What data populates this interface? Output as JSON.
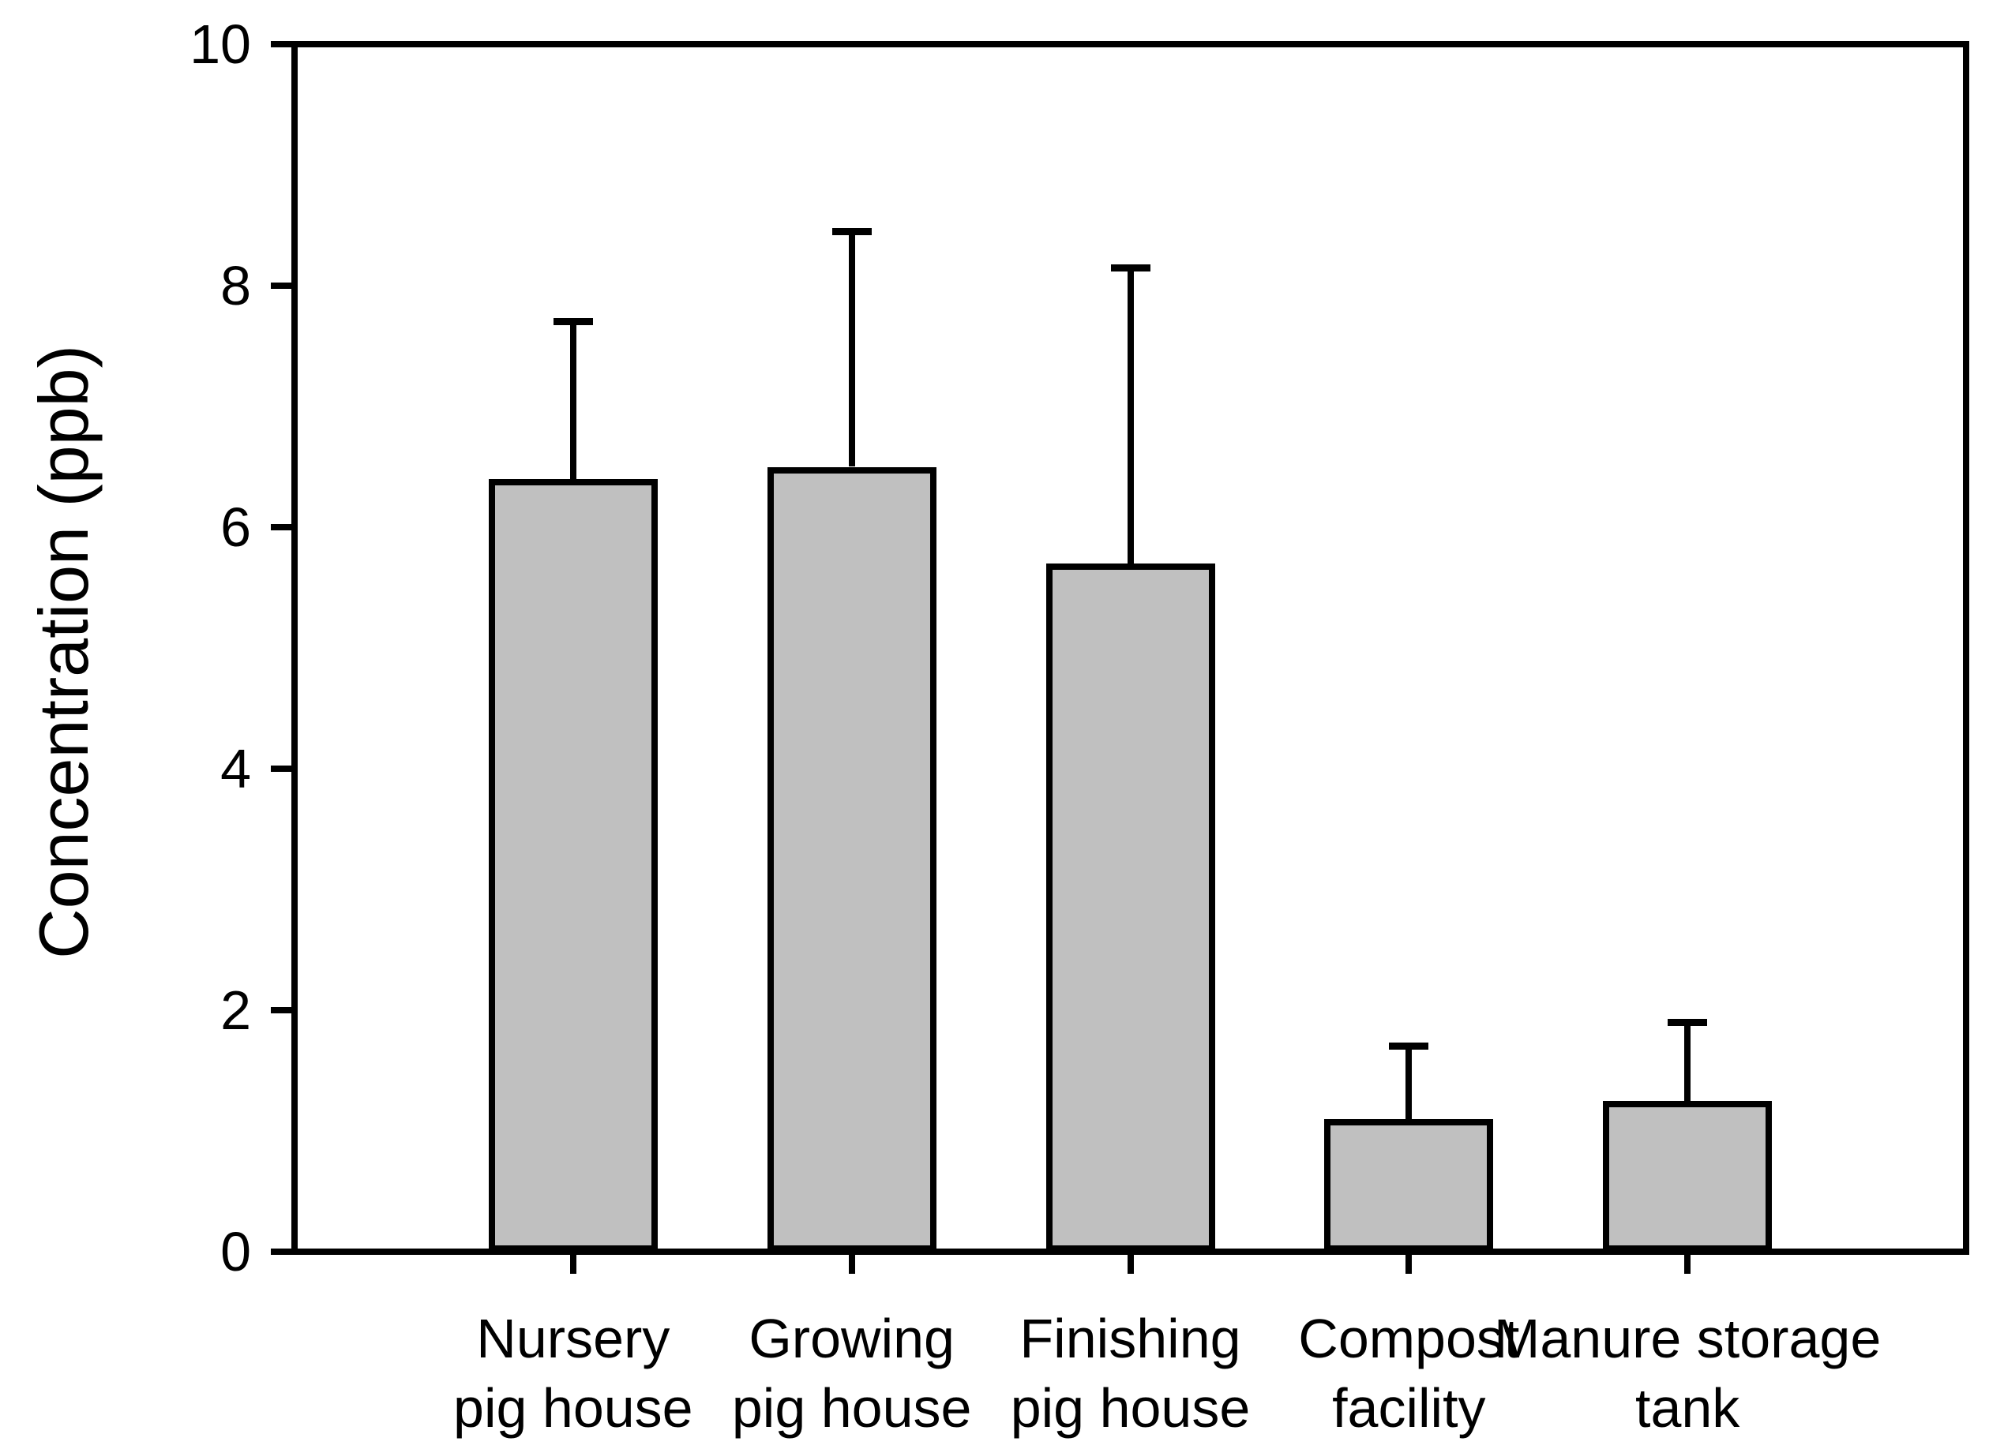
{
  "chart_data": {
    "type": "bar",
    "title": "",
    "xlabel": "",
    "ylabel": "Concentration (ppb)",
    "ylim": [
      0,
      10
    ],
    "yticks": [
      0,
      2,
      4,
      6,
      8,
      10
    ],
    "categories": [
      [
        "Nursery",
        "pig house"
      ],
      [
        "Growing",
        "pig house"
      ],
      [
        "Finishing",
        "pig house"
      ],
      [
        "Compost",
        "facility"
      ],
      [
        "Manure storage",
        "tank"
      ]
    ],
    "series": [
      {
        "name": "Concentration",
        "values": [
          6.4,
          6.5,
          5.7,
          1.1,
          1.25
        ],
        "errors_upper": [
          1.3,
          1.95,
          2.45,
          0.6,
          0.65
        ]
      }
    ],
    "error_bars": "upper-only",
    "grid": false,
    "legend": false,
    "bar_fill_color": "#c0c0c0",
    "bar_border_color": "#000000",
    "axis_color": "#000000",
    "background_color": "#ffffff"
  }
}
